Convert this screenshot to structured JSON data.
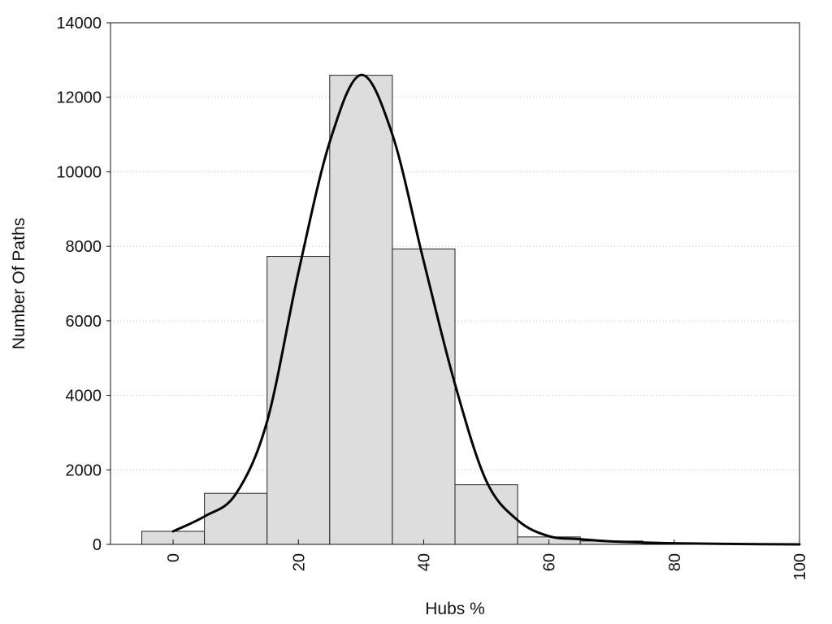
{
  "chart_data": {
    "type": "bar",
    "title": "",
    "xlabel": "Hubs %",
    "ylabel": "Number Of Paths",
    "xlim": [
      -10,
      100
    ],
    "ylim": [
      0,
      14000
    ],
    "grid": true,
    "bin_width": 10,
    "x_ticks": [
      "0",
      "20",
      "40",
      "60",
      "80",
      "100"
    ],
    "y_ticks": [
      "0",
      "2000",
      "4000",
      "6000",
      "8000",
      "10000",
      "12000",
      "14000"
    ],
    "series": [
      {
        "values": [
          {
            "x": 0,
            "y": 350
          },
          {
            "x": 10,
            "y": 1370
          },
          {
            "x": 20,
            "y": 7730
          },
          {
            "x": 30,
            "y": 12590
          },
          {
            "x": 40,
            "y": 7930
          },
          {
            "x": 50,
            "y": 1600
          },
          {
            "x": 60,
            "y": 200
          },
          {
            "x": 70,
            "y": 90
          },
          {
            "x": 80,
            "y": 25
          },
          {
            "x": 90,
            "y": 8
          }
        ]
      },
      {
        "type": "line",
        "values": [
          {
            "x": 0,
            "y": 350
          },
          {
            "x": 5,
            "y": 750
          },
          {
            "x": 10,
            "y": 1350
          },
          {
            "x": 15,
            "y": 3300
          },
          {
            "x": 20,
            "y": 7300
          },
          {
            "x": 25,
            "y": 10800
          },
          {
            "x": 30,
            "y": 12600
          },
          {
            "x": 35,
            "y": 11000
          },
          {
            "x": 40,
            "y": 7600
          },
          {
            "x": 45,
            "y": 4300
          },
          {
            "x": 50,
            "y": 1700
          },
          {
            "x": 55,
            "y": 650
          },
          {
            "x": 60,
            "y": 220
          },
          {
            "x": 65,
            "y": 140
          },
          {
            "x": 70,
            "y": 80
          },
          {
            "x": 80,
            "y": 30
          },
          {
            "x": 90,
            "y": 10
          },
          {
            "x": 100,
            "y": 0
          }
        ]
      }
    ]
  }
}
